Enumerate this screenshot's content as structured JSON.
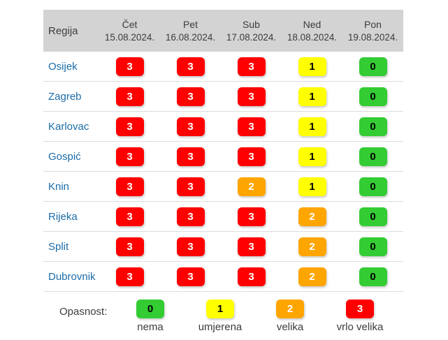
{
  "chart_data": {
    "type": "table",
    "title": "",
    "region_header": "Regija",
    "days": [
      {
        "name": "Čet",
        "date": "15.08.2024."
      },
      {
        "name": "Pet",
        "date": "16.08.2024."
      },
      {
        "name": "Sub",
        "date": "17.08.2024."
      },
      {
        "name": "Ned",
        "date": "18.08.2024."
      },
      {
        "name": "Pon",
        "date": "19.08.2024."
      }
    ],
    "rows": [
      {
        "region": "Osijek",
        "values": [
          3,
          3,
          3,
          1,
          0
        ]
      },
      {
        "region": "Zagreb",
        "values": [
          3,
          3,
          3,
          1,
          0
        ]
      },
      {
        "region": "Karlovac",
        "values": [
          3,
          3,
          3,
          1,
          0
        ]
      },
      {
        "region": "Gospić",
        "values": [
          3,
          3,
          3,
          1,
          0
        ]
      },
      {
        "region": "Knin",
        "values": [
          3,
          3,
          2,
          1,
          0
        ]
      },
      {
        "region": "Rijeka",
        "values": [
          3,
          3,
          3,
          2,
          0
        ]
      },
      {
        "region": "Split",
        "values": [
          3,
          3,
          3,
          2,
          0
        ]
      },
      {
        "region": "Dubrovnik",
        "values": [
          3,
          3,
          3,
          2,
          0
        ]
      }
    ],
    "legend": {
      "label": "Opasnost:",
      "items": [
        {
          "value": 0,
          "label": "nema",
          "level": 0
        },
        {
          "value": 1,
          "label": "umjerena",
          "level": 1
        },
        {
          "value": 2,
          "label": "velika",
          "level": 2
        },
        {
          "value": 3,
          "label": "vrlo velika",
          "level": 3
        }
      ]
    }
  },
  "colors": {
    "level0": "#33cc33",
    "level1": "#ffff00",
    "level2": "#ffa500",
    "level3": "#ff0000",
    "header_bg": "#d3d3d3",
    "region_text": "#1b6ca8"
  }
}
